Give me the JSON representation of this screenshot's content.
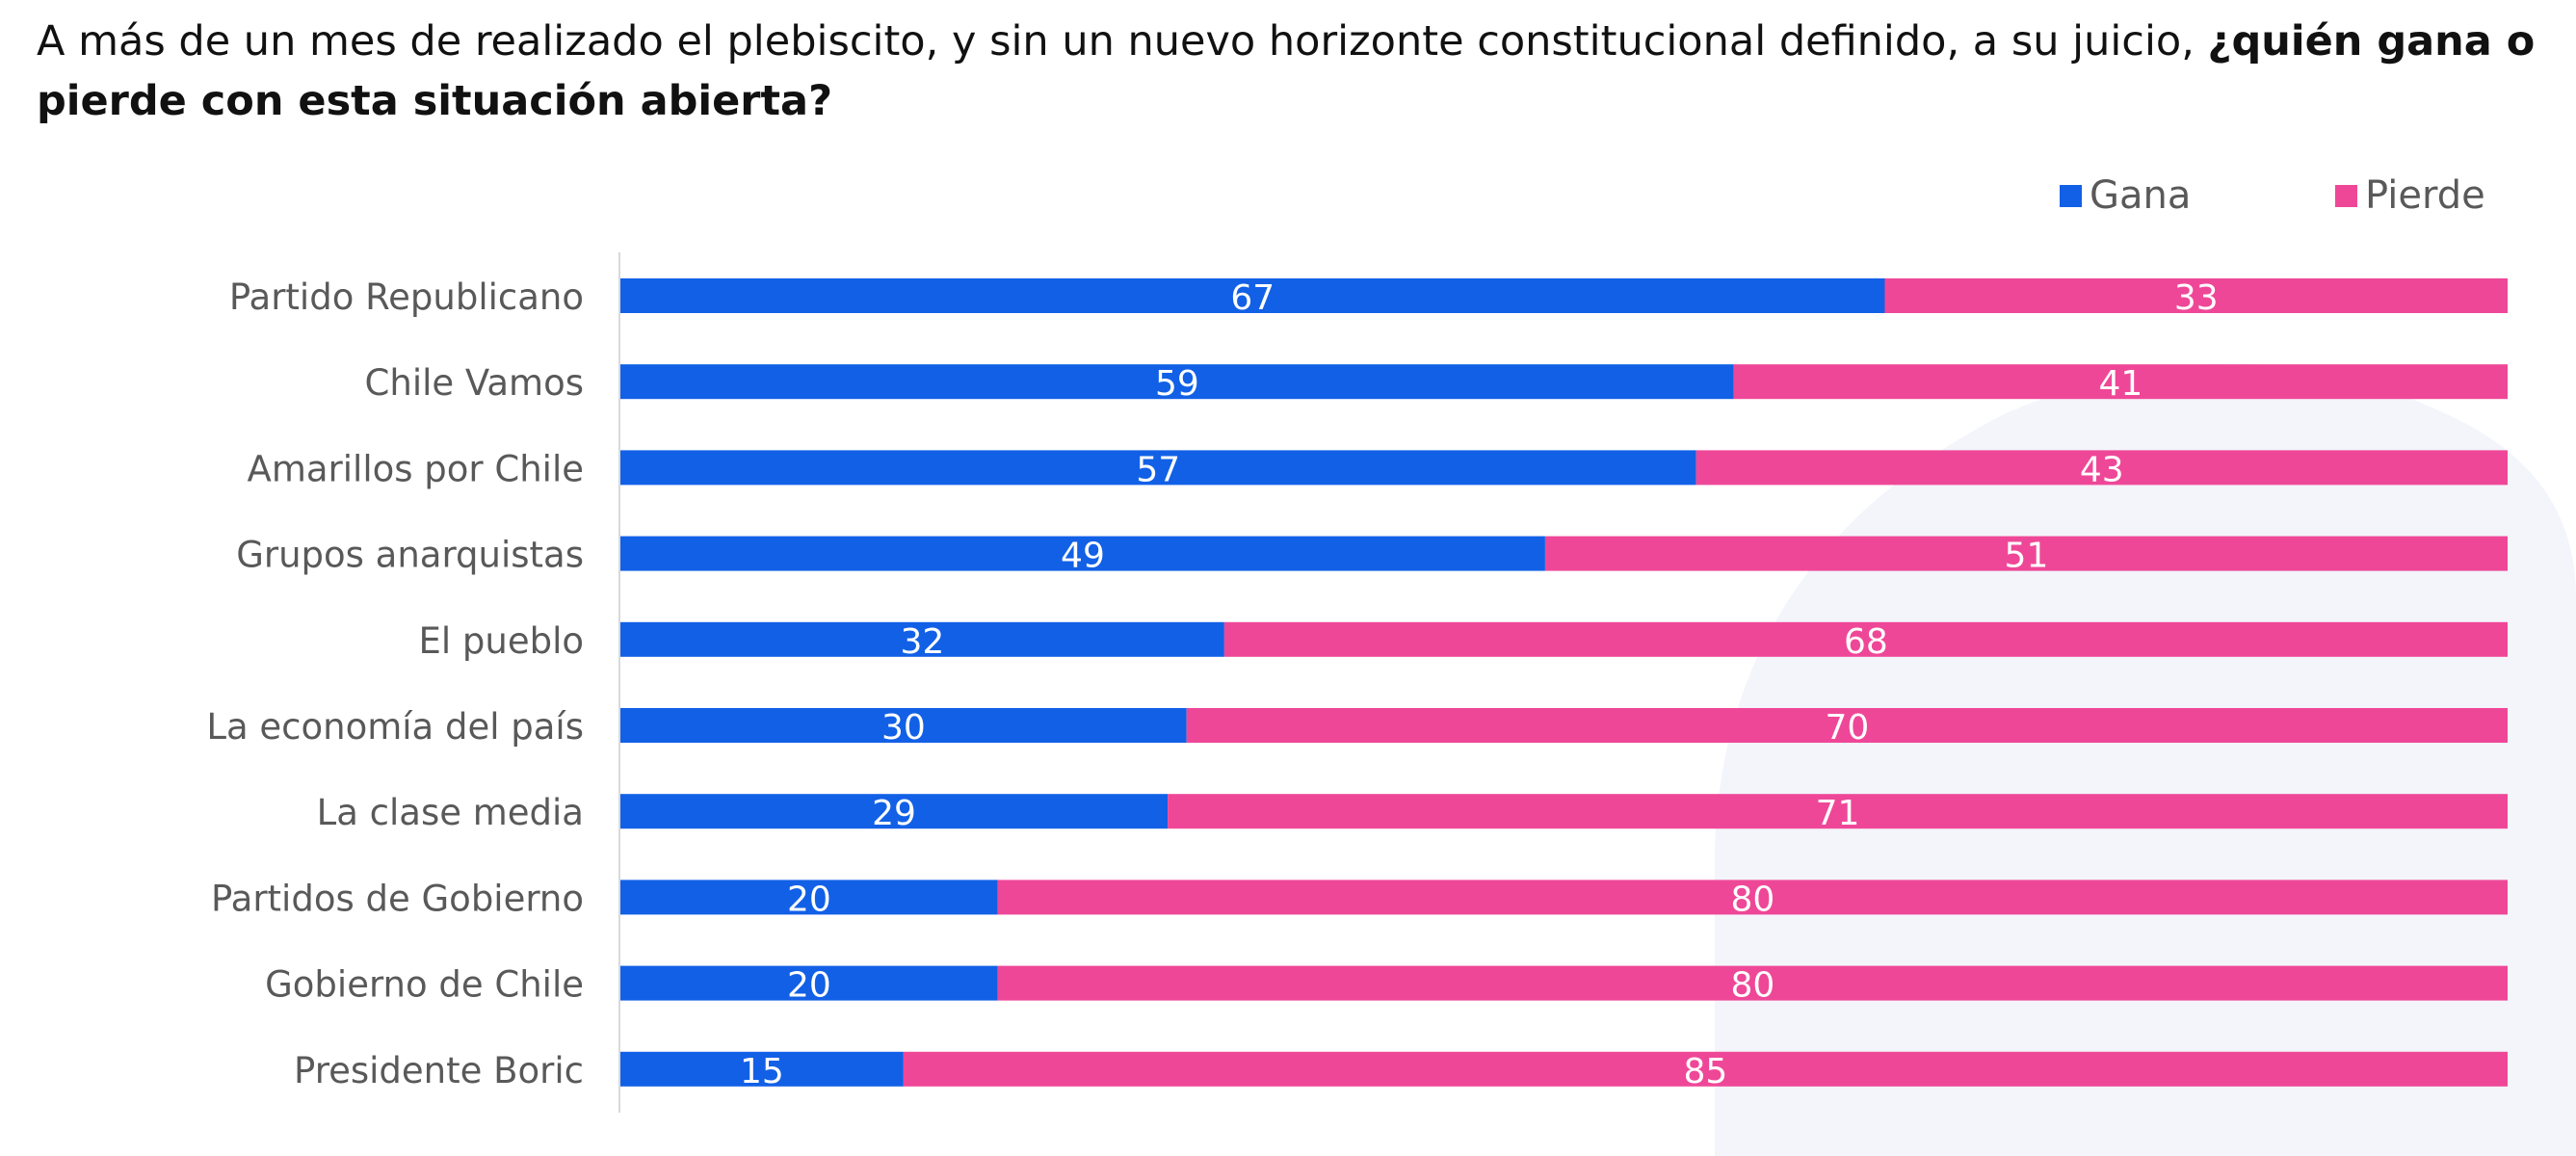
{
  "question": {
    "text_regular": "A más de un mes de realizado el plebiscito, y sin un nuevo horizonte constitucional definido, a su juicio, ",
    "text_bold": "¿quién gana o pierde con esta situación abierta?"
  },
  "colors": {
    "gana": "#1260e6",
    "pierde": "#ef4798",
    "axis_line": "#d9d9d9",
    "category_text": "#595959",
    "bar_label_text": "#ffffff",
    "watermark": "#f2f4fb"
  },
  "chart_data": {
    "type": "bar",
    "orientation": "horizontal",
    "stacked": true,
    "categories": [
      "Partido Republicano",
      "Chile Vamos",
      "Amarillos por Chile",
      "Grupos anarquistas",
      "El pueblo",
      "La economía del país",
      "La clase media",
      "Partidos de Gobierno",
      "Gobierno de Chile",
      "Presidente Boric"
    ],
    "series": [
      {
        "name": "Gana",
        "values": [
          67,
          59,
          57,
          49,
          32,
          30,
          29,
          20,
          20,
          15
        ]
      },
      {
        "name": "Pierde",
        "values": [
          33,
          41,
          43,
          51,
          68,
          70,
          71,
          80,
          80,
          85
        ]
      }
    ],
    "xlim": [
      0,
      100
    ],
    "grid": false,
    "legend_position": "top-right",
    "data_labels": true
  }
}
